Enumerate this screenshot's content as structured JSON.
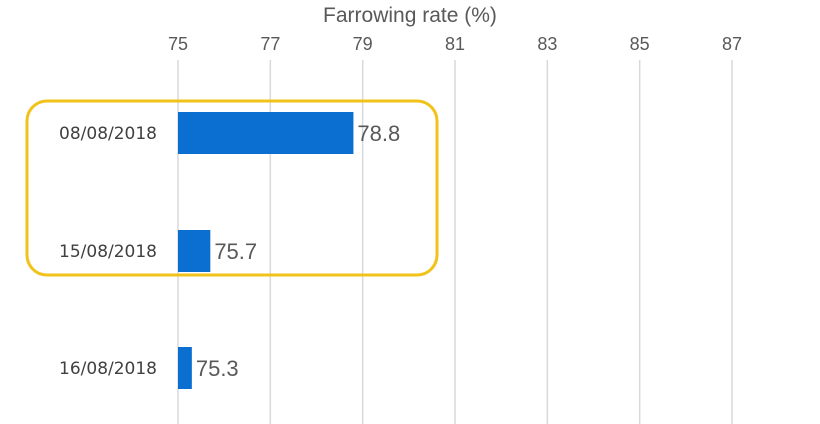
{
  "chart_data": {
    "type": "bar",
    "orientation": "horizontal",
    "xlabel": "Farrowing rate (%)",
    "xlim": [
      75,
      87
    ],
    "xticks": [
      75,
      77,
      79,
      81,
      83,
      85,
      87
    ],
    "x_axis_position": "top",
    "grid": true,
    "categories": [
      "08/08/2018",
      "15/08/2018",
      "16/08/2018"
    ],
    "values": [
      78.8,
      75.7,
      75.3
    ],
    "data_labels": [
      "78.8",
      "75.7",
      "75.3"
    ],
    "bar_color": "#0a6fd1",
    "highlight": {
      "categories": [
        "08/08/2018",
        "15/08/2018"
      ],
      "shape": "rounded-rectangle",
      "color": "#f2c21b"
    }
  }
}
